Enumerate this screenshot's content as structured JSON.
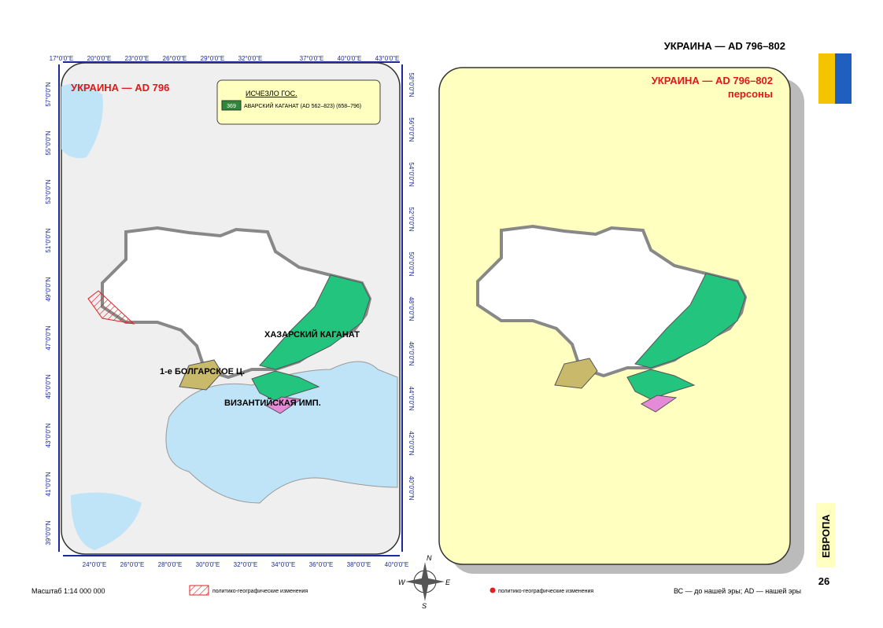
{
  "header": {
    "title": "УКРАИНА — AD 796–802"
  },
  "left_map": {
    "title": "УКРАИНА — AD 796",
    "legend": {
      "heading": "ИСЧЕЗЛО ГОС.",
      "code": "369",
      "entry": "АВАРСКИЙ КАГАНАТ (AD 562–823) (658–796)"
    },
    "labels": [
      "ХАЗАРСКИЙ КАГАНАТ",
      "1-е БОЛГАРСКОЕ Ц.",
      "ВИЗАНТИЙСКАЯ ИМП."
    ],
    "top_ticks": [
      "17°0'0\"E",
      "20°0'0\"E",
      "23°0'0\"E",
      "26°0'0\"E",
      "29°0'0\"E",
      "32°0'0\"E",
      "37°0'0\"E",
      "40°0'0\"E",
      "43°0'0\"E"
    ],
    "bottom_ticks": [
      "24°0'0\"E",
      "26°0'0\"E",
      "28°0'0\"E",
      "30°0'0\"E",
      "32°0'0\"E",
      "34°0'0\"E",
      "36°0'0\"E",
      "38°0'0\"E",
      "40°0'0\"E"
    ],
    "left_ticks": [
      "57°0'0\"N",
      "55°0'0\"N",
      "53°0'0\"N",
      "51°0'0\"N",
      "49°0'0\"N",
      "47°0'0\"N",
      "45°0'0\"N",
      "43°0'0\"N",
      "41°0'0\"N",
      "39°0'0\"N"
    ],
    "right_ticks": [
      "58°0'0\"N",
      "56°0'0\"N",
      "54°0'0\"N",
      "52°0'0\"N",
      "50°0'0\"N",
      "48°0'0\"N",
      "46°0'0\"N",
      "44°0'0\"N",
      "42°0'0\"N",
      "40°0'0\"N"
    ]
  },
  "right_map": {
    "title": "УКРАИНА — AD 796–802",
    "subtitle": "персоны"
  },
  "sidebar": {
    "section": "ЕВРОПА",
    "page": "26"
  },
  "compass": [
    "N",
    "W",
    "E",
    "S"
  ],
  "footer": {
    "scale": "Масштаб 1:14 000 000",
    "legend_hatch": "политико-географические изменения",
    "legend_dot": "политико-географические изменения",
    "era_note": "ВС — до нашей эры; AD — нашей эры"
  }
}
